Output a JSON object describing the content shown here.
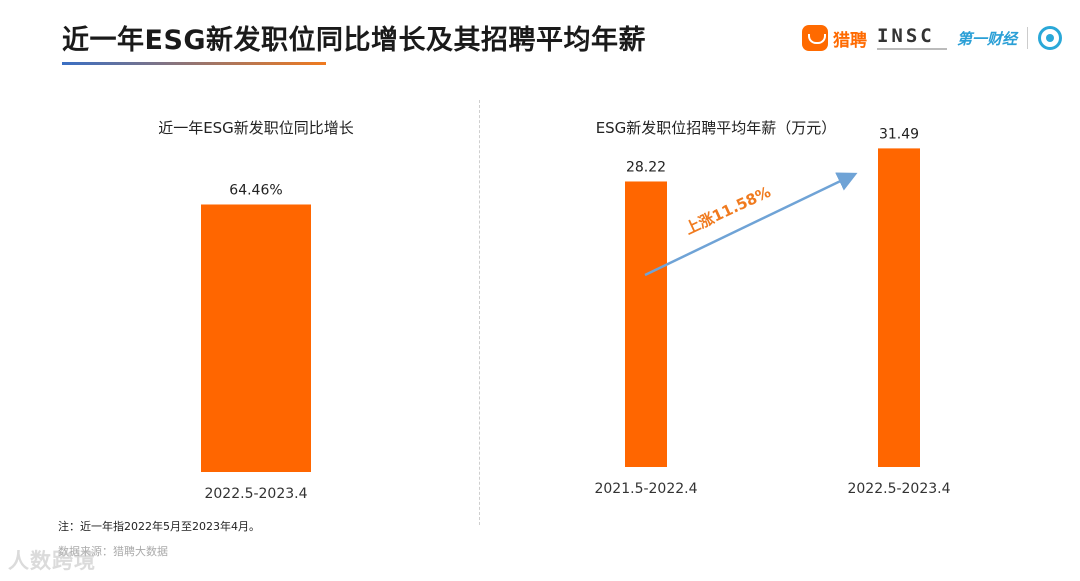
{
  "header": {
    "title": "近一年ESG新发职位同比增长及其招聘平均年薪",
    "logos": {
      "liepin": "猎聘",
      "insc": "INSC",
      "yicai": "第一财经"
    }
  },
  "colors": {
    "bar": "#ff6600",
    "arrow": "#6fa3d6",
    "growth_label": "#f07a1e"
  },
  "chart_data": [
    {
      "type": "bar",
      "title": "近一年ESG新发职位同比增长",
      "categories": [
        "2022.5-2023.4"
      ],
      "values": [
        64.46
      ],
      "value_labels": [
        "64.46%"
      ],
      "ylim": [
        0,
        80
      ],
      "grid": false,
      "xlabel": "",
      "ylabel": ""
    },
    {
      "type": "bar",
      "title": "ESG新发职位招聘平均年薪（万元）",
      "categories": [
        "2021.5-2022.4",
        "2022.5-2023.4"
      ],
      "values": [
        28.22,
        31.49
      ],
      "value_labels": [
        "28.22",
        "31.49"
      ],
      "ylim": [
        0,
        34
      ],
      "grid": false,
      "annotation": "上涨11.58%",
      "xlabel": "",
      "ylabel": ""
    }
  ],
  "footer": {
    "note": "注：近一年指2022年5月至2023年4月。",
    "source": "数据来源：猎聘大数据",
    "watermark": "人数跨境"
  }
}
